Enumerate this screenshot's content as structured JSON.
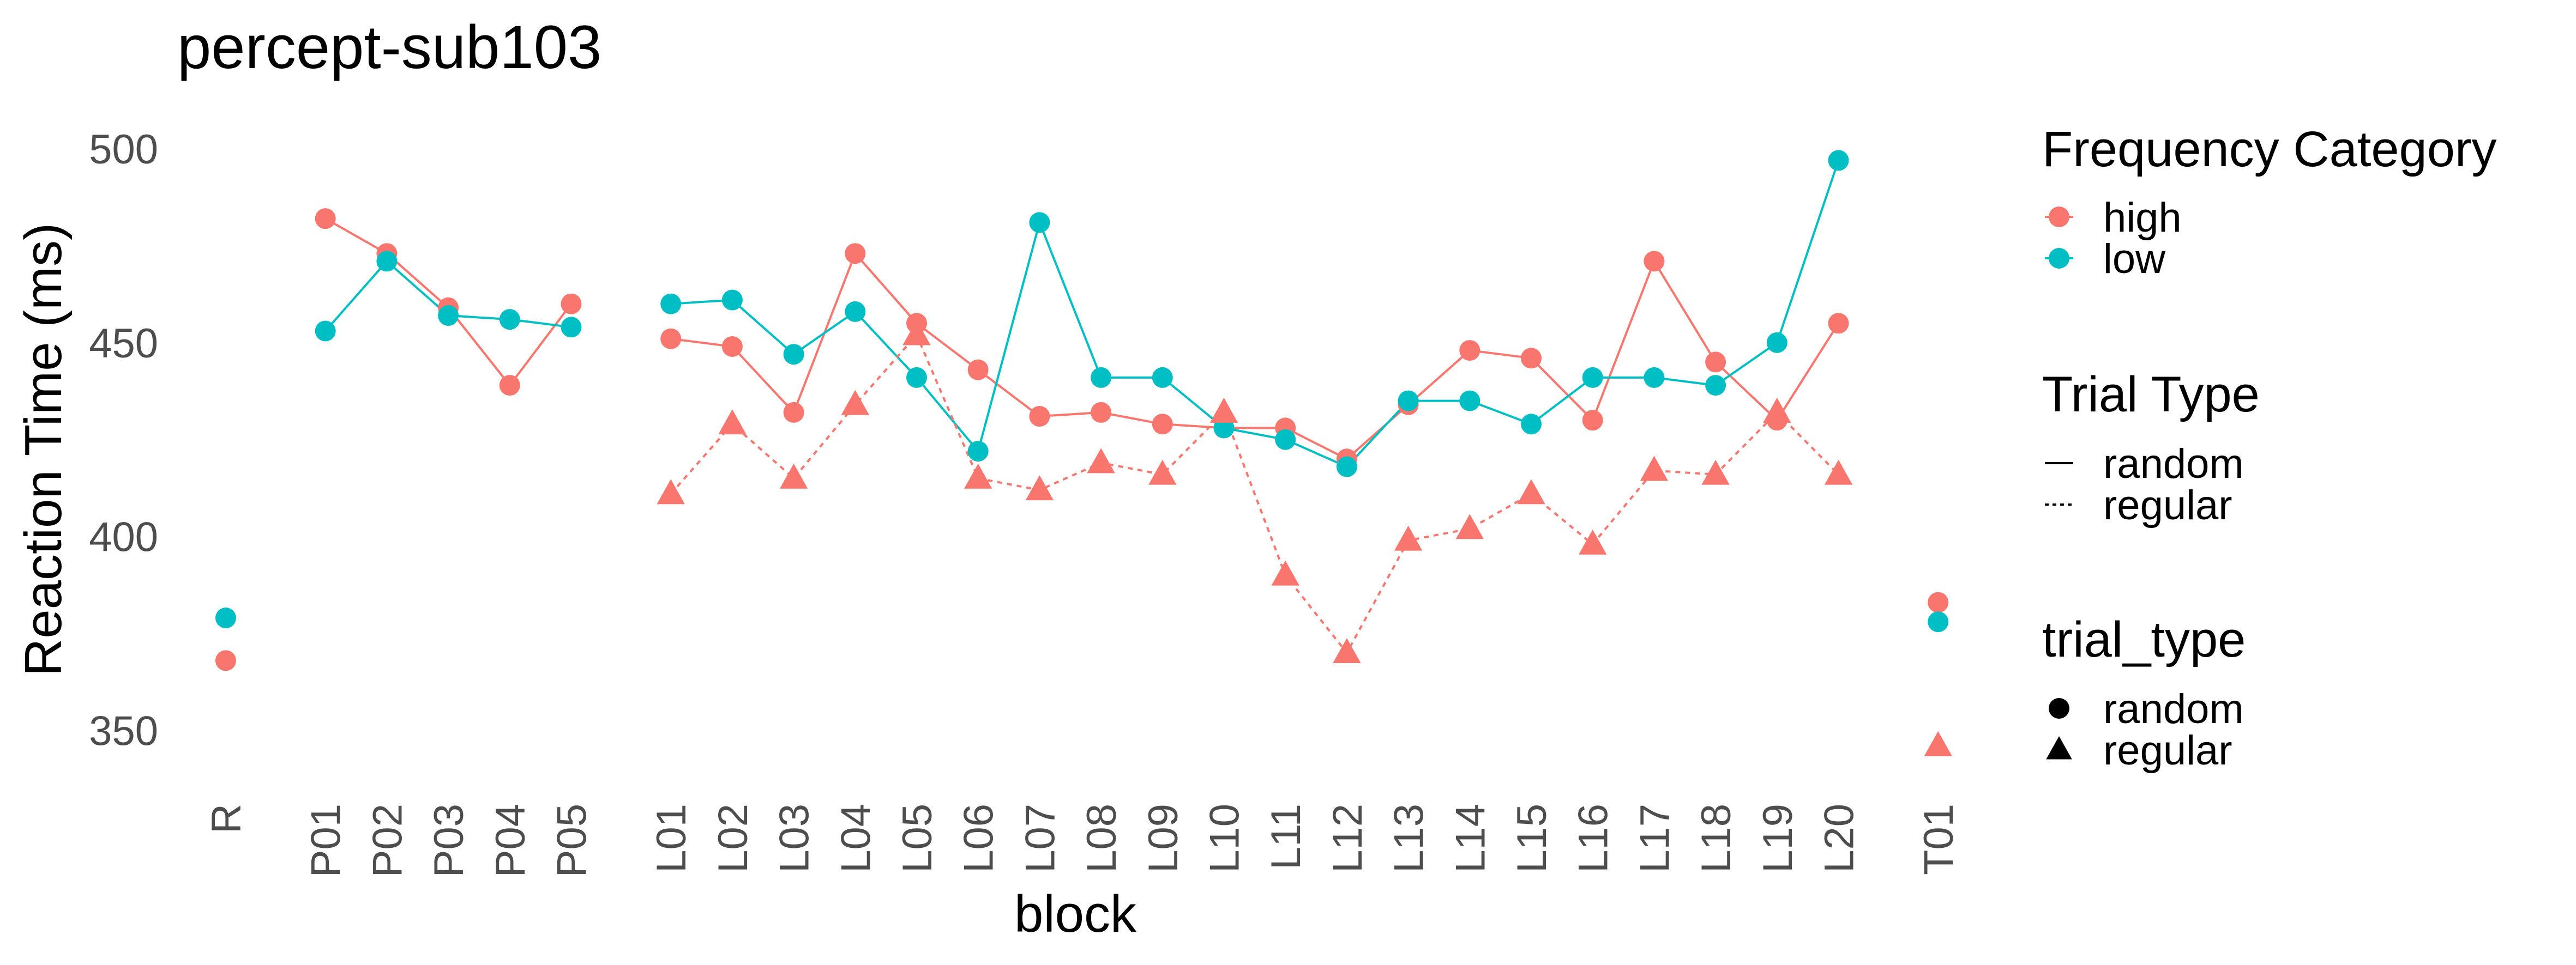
{
  "chart_data": {
    "type": "line",
    "title": "percept-sub103",
    "xlabel": "block",
    "ylabel": "Reaction Time (ms)",
    "ylim": [
      336,
      518
    ],
    "yticks": [
      350,
      400,
      450,
      500
    ],
    "grid": false,
    "categories": [
      "R",
      "P01",
      "P02",
      "P03",
      "P04",
      "P05",
      "L01",
      "L02",
      "L03",
      "L04",
      "L05",
      "L06",
      "L07",
      "L08",
      "L09",
      "L10",
      "L11",
      "L12",
      "L13",
      "L14",
      "L15",
      "L16",
      "L17",
      "L18",
      "L19",
      "L20",
      "T01"
    ],
    "groups": [
      [
        "R"
      ],
      [
        "P01",
        "P02",
        "P03",
        "P04",
        "P05"
      ],
      [
        "L01",
        "L02",
        "L03",
        "L04",
        "L05",
        "L06",
        "L07",
        "L08",
        "L09",
        "L10",
        "L11",
        "L12",
        "L13",
        "L14",
        "L15",
        "L16",
        "L17",
        "L18",
        "L19",
        "L20"
      ],
      [
        "T01"
      ]
    ],
    "series": [
      {
        "frequency": "high",
        "trial_type": "random",
        "color": "#F8766D",
        "values": [
          368,
          482,
          473,
          459,
          439,
          460,
          451,
          449,
          432,
          473,
          455,
          443,
          431,
          432,
          429,
          428,
          428,
          420,
          434,
          448,
          446,
          430,
          471,
          445,
          430,
          455,
          383
        ]
      },
      {
        "frequency": "low",
        "trial_type": "random",
        "color": "#00BFC4",
        "values": [
          379,
          453,
          471,
          457,
          456,
          454,
          460,
          461,
          447,
          458,
          441,
          422,
          481,
          441,
          441,
          428,
          425,
          418,
          435,
          435,
          429,
          441,
          441,
          439,
          450,
          497,
          378
        ]
      },
      {
        "frequency": "high",
        "trial_type": "regular",
        "color": "#F8766D",
        "values": [
          null,
          null,
          null,
          null,
          null,
          null,
          411,
          429,
          415,
          434,
          452,
          415,
          412,
          419,
          416,
          432,
          390,
          370,
          399,
          402,
          411,
          398,
          417,
          416,
          432,
          416,
          346
        ]
      }
    ],
    "legend": {
      "placement": "right",
      "frequency": {
        "title": "Frequency Category",
        "items": [
          "high",
          "low"
        ]
      },
      "linetype": {
        "title": "Trial Type",
        "items": [
          "random",
          "regular"
        ]
      },
      "shape": {
        "title": "trial_type",
        "items": [
          "random",
          "regular"
        ]
      }
    }
  }
}
